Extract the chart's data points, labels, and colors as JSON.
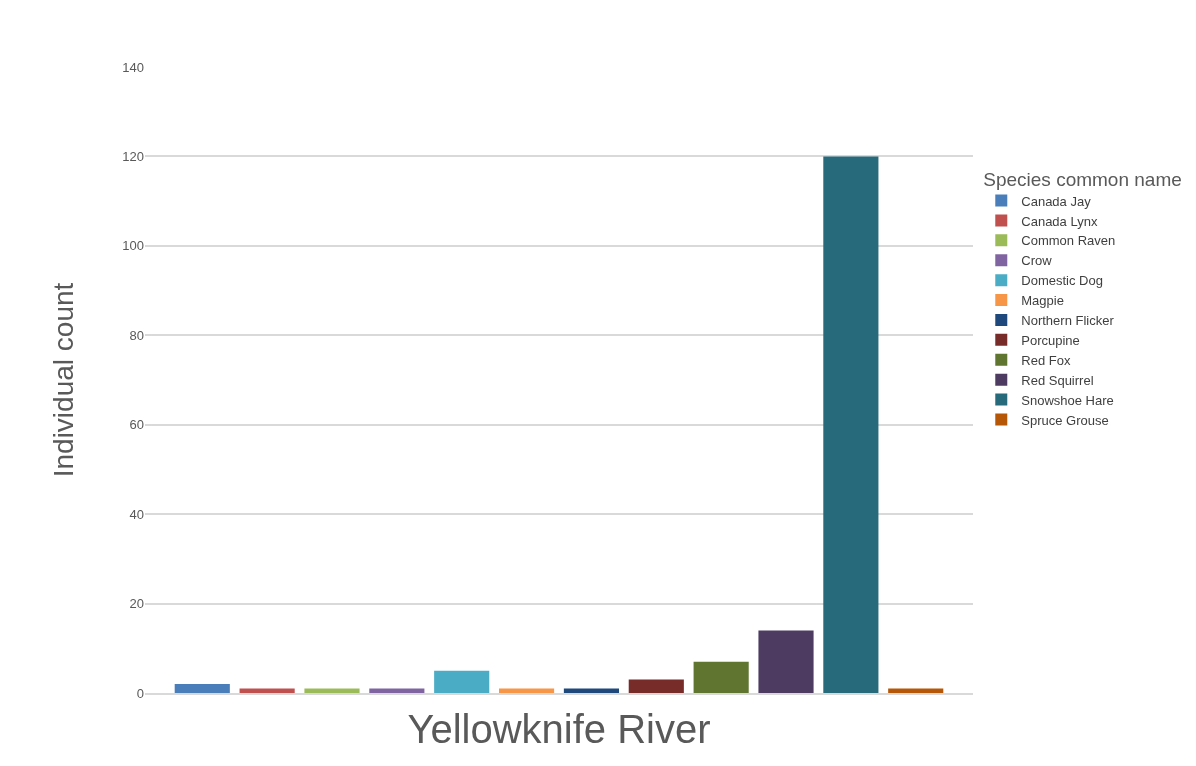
{
  "chart_data": {
    "type": "bar",
    "ylabel": "Individual count",
    "legend_title": "Species common name",
    "categories": [
      "Yellowknife River"
    ],
    "series": [
      {
        "name": "Canada Jay",
        "color": "#4a7ebb",
        "values": [
          2
        ]
      },
      {
        "name": "Canada Lynx",
        "color": "#c0504d",
        "values": [
          1
        ]
      },
      {
        "name": "Common Raven",
        "color": "#9bbb59",
        "values": [
          1
        ]
      },
      {
        "name": "Crow",
        "color": "#8064a2",
        "values": [
          1
        ]
      },
      {
        "name": "Domestic Dog",
        "color": "#4bacc6",
        "values": [
          5
        ]
      },
      {
        "name": "Magpie",
        "color": "#f79646",
        "values": [
          1
        ]
      },
      {
        "name": "Northern Flicker",
        "color": "#1f497d",
        "values": [
          1
        ]
      },
      {
        "name": "Porcupine",
        "color": "#772c2a",
        "values": [
          3
        ]
      },
      {
        "name": "Red Fox",
        "color": "#5f7530",
        "values": [
          7
        ]
      },
      {
        "name": "Red Squirrel",
        "color": "#4d3b62",
        "values": [
          14
        ]
      },
      {
        "name": "Snowshoe Hare",
        "color": "#276a7c",
        "values": [
          120
        ]
      },
      {
        "name": "Spruce Grouse",
        "color": "#b65708",
        "values": [
          1
        ]
      }
    ],
    "ylim": [
      0,
      140
    ],
    "yticks": [
      0,
      20,
      40,
      60,
      80,
      100,
      120,
      140
    ],
    "grid": "y",
    "legend": "right"
  }
}
